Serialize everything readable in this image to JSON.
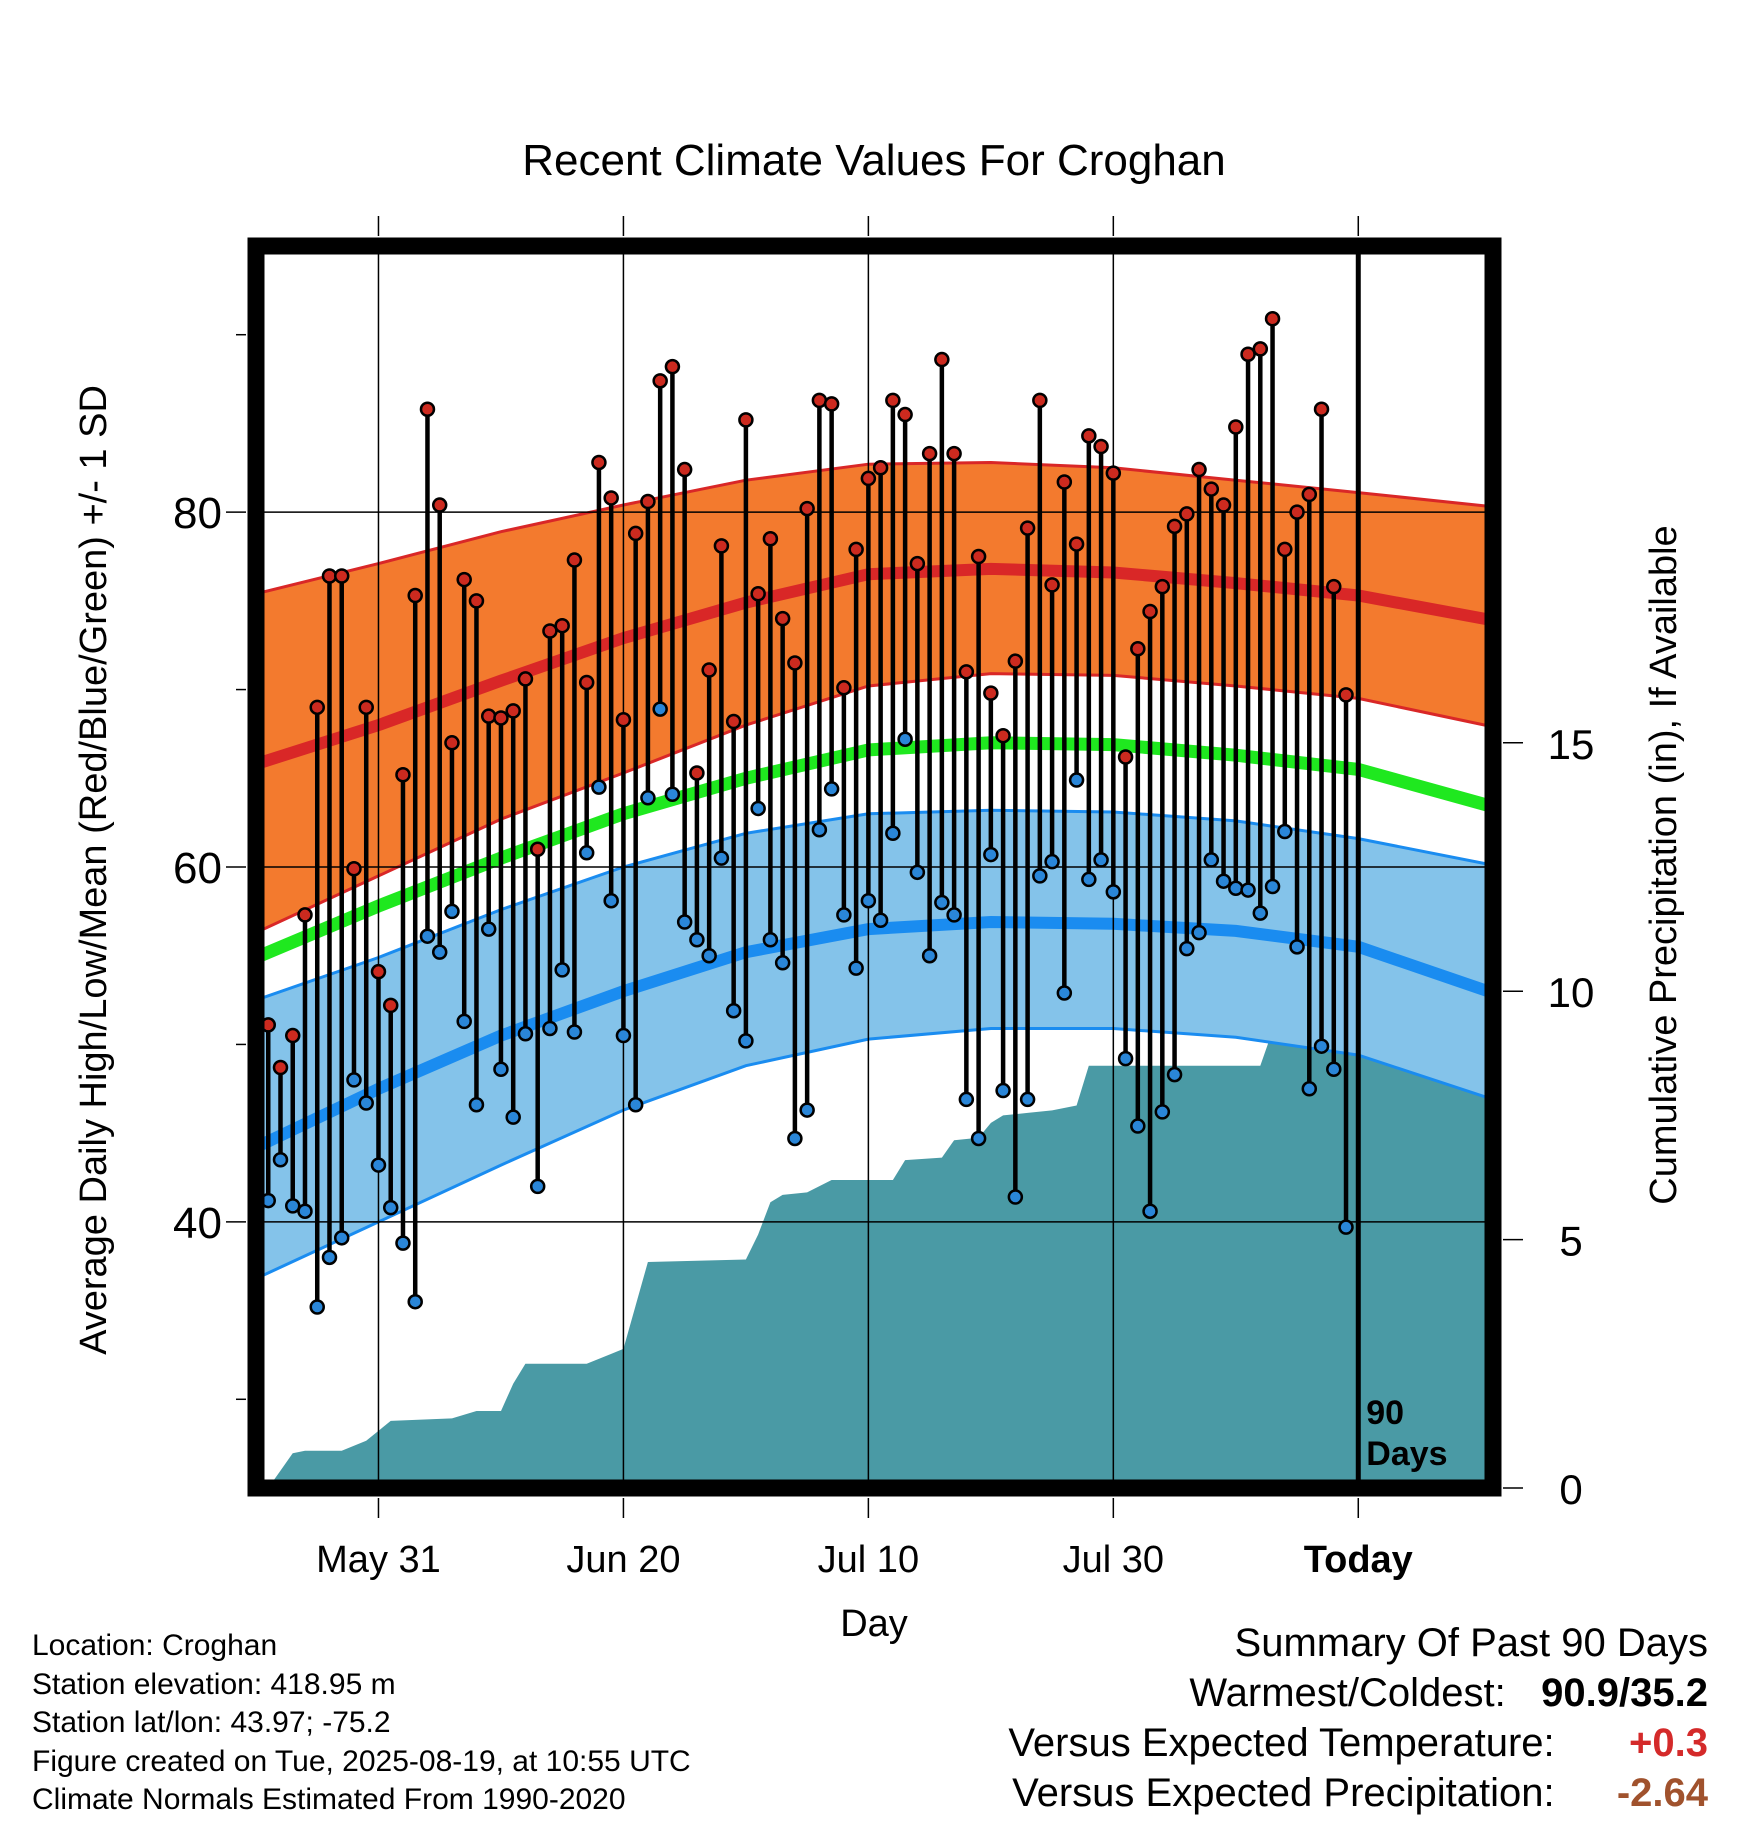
{
  "chart_data": {
    "type": "line",
    "title": "Recent Climate Values For Croghan",
    "xlabel": "Day",
    "ylabel": "Average Daily High/Low/Mean (Red/Blue/Green) +/- 1 SD",
    "y2label": "Cumulative Precipitation (in), If Available",
    "x_range": [
      "2025-05-21",
      "2025-08-30"
    ],
    "ylim": [
      25,
      95
    ],
    "y2lim": [
      0,
      25
    ],
    "x_ticks": [
      {
        "date": "2025-05-31",
        "label": "May 31"
      },
      {
        "date": "2025-06-20",
        "label": "Jun 20"
      },
      {
        "date": "2025-07-10",
        "label": "Jul 10"
      },
      {
        "date": "2025-07-30",
        "label": "Jul 30"
      },
      {
        "date": "2025-08-19",
        "label": "Today"
      }
    ],
    "y_ticks": [
      40,
      60,
      80
    ],
    "y2_ticks": [
      0,
      5,
      10,
      15
    ],
    "today_marker": {
      "date": "2025-08-19",
      "label_line1": "90",
      "label_line2": "Days"
    },
    "grid": true,
    "colors": {
      "high_band": "#f37a2e",
      "high_mean": "#d92727",
      "mean_line": "#1fe81f",
      "low_band": "#84c3ea",
      "low_mean": "#1a8cf0",
      "precip": "#4a9aa5",
      "high_dot": "#cc2a1f",
      "low_dot": "#2a86d8"
    },
    "normals": {
      "dates": [
        "2025-05-21",
        "2025-05-31",
        "2025-06-10",
        "2025-06-20",
        "2025-06-30",
        "2025-07-10",
        "2025-07-20",
        "2025-07-30",
        "2025-08-09",
        "2025-08-19",
        "2025-08-30"
      ],
      "high_mean": [
        65.8,
        68.0,
        70.5,
        72.9,
        74.9,
        76.5,
        76.8,
        76.6,
        76.0,
        75.3,
        73.9
      ],
      "high_upper": [
        75.4,
        77.1,
        78.9,
        80.4,
        81.8,
        82.7,
        82.8,
        82.5,
        81.8,
        81.1,
        80.3
      ],
      "high_lower": [
        56.3,
        59.5,
        62.7,
        65.3,
        68.0,
        70.2,
        70.9,
        70.8,
        70.2,
        69.5,
        67.9
      ],
      "mean": [
        54.9,
        57.8,
        60.5,
        63.0,
        65.0,
        66.6,
        67.0,
        66.9,
        66.3,
        65.5,
        63.4
      ],
      "low_mean": [
        44.2,
        47.5,
        50.5,
        53.0,
        55.2,
        56.5,
        56.9,
        56.8,
        56.4,
        55.5,
        52.9
      ],
      "low_upper": [
        52.5,
        54.9,
        57.6,
        60.0,
        61.9,
        63.0,
        63.2,
        63.1,
        62.6,
        61.6,
        60.1
      ],
      "low_lower": [
        36.8,
        40.0,
        43.2,
        46.3,
        48.8,
        50.3,
        50.9,
        50.9,
        50.4,
        49.4,
        46.9
      ]
    },
    "daily": {
      "start_date": "2025-05-21",
      "high": [
        55.0,
        51.1,
        48.7,
        50.5,
        57.3,
        69.0,
        76.4,
        76.4,
        59.9,
        69.0,
        54.1,
        52.2,
        65.2,
        75.3,
        85.8,
        80.4,
        67.0,
        76.2,
        75.0,
        68.5,
        68.4,
        68.8,
        70.6,
        61.0,
        73.3,
        73.6,
        77.3,
        70.4,
        82.8,
        80.8,
        68.3,
        78.8,
        80.6,
        87.4,
        88.2,
        82.4,
        65.3,
        71.1,
        78.1,
        68.2,
        85.2,
        75.4,
        78.5,
        74.0,
        71.5,
        80.2,
        86.3,
        86.1,
        70.1,
        77.9,
        81.9,
        82.5,
        86.3,
        85.5,
        77.1,
        83.3,
        88.6,
        83.3,
        71.0,
        77.5,
        69.8,
        67.4,
        71.6,
        79.1,
        86.3,
        75.9,
        81.7,
        78.2,
        84.3,
        83.7,
        82.2,
        66.2,
        72.3,
        74.4,
        75.8,
        79.2,
        79.9,
        82.4,
        81.3,
        80.4,
        84.8,
        88.9,
        89.2,
        90.9,
        77.9,
        80.0,
        81.0,
        85.8,
        75.8,
        69.7
      ],
      "low": [
        41.5,
        41.2,
        43.5,
        40.9,
        40.6,
        35.2,
        38.0,
        39.1,
        48.0,
        46.7,
        43.2,
        40.8,
        38.8,
        35.5,
        56.1,
        55.2,
        57.5,
        51.3,
        46.6,
        56.5,
        48.6,
        45.9,
        50.6,
        42.0,
        50.9,
        54.2,
        50.7,
        60.8,
        64.5,
        58.1,
        50.5,
        46.6,
        63.9,
        68.9,
        64.1,
        56.9,
        55.9,
        55.0,
        60.5,
        51.9,
        50.2,
        63.3,
        55.9,
        54.6,
        44.7,
        46.3,
        62.1,
        64.4,
        57.3,
        54.3,
        58.1,
        57.0,
        61.9,
        67.2,
        59.7,
        55.0,
        58.0,
        57.3,
        46.9,
        44.7,
        60.7,
        47.4,
        41.4,
        46.9,
        59.5,
        60.3,
        52.9,
        64.9,
        59.3,
        60.4,
        58.6,
        49.2,
        45.4,
        40.6,
        46.2,
        48.3,
        55.4,
        56.3,
        60.4,
        59.2,
        58.8,
        58.7,
        57.4,
        58.9,
        62.0,
        55.5,
        47.5,
        49.9,
        48.6,
        39.7
      ]
    },
    "precip": {
      "dates": [
        "2025-05-21",
        "2025-05-22",
        "2025-05-23",
        "2025-05-24",
        "2025-05-25",
        "2025-05-28",
        "2025-05-30",
        "2025-06-01",
        "2025-06-06",
        "2025-06-08",
        "2025-06-10",
        "2025-06-11",
        "2025-06-12",
        "2025-06-17",
        "2025-06-19",
        "2025-06-20",
        "2025-06-22",
        "2025-06-30",
        "2025-07-01",
        "2025-07-02",
        "2025-07-03",
        "2025-07-05",
        "2025-07-07",
        "2025-07-12",
        "2025-07-13",
        "2025-07-16",
        "2025-07-17",
        "2025-07-19",
        "2025-07-20",
        "2025-07-21",
        "2025-07-23",
        "2025-07-25",
        "2025-07-27",
        "2025-07-28",
        "2025-08-11",
        "2025-08-12",
        "2025-08-19",
        "2025-08-30"
      ],
      "cumulative": [
        0.0,
        0.0,
        0.35,
        0.7,
        0.75,
        0.75,
        0.95,
        1.35,
        1.4,
        1.55,
        1.55,
        2.1,
        2.5,
        2.5,
        2.7,
        2.8,
        4.55,
        4.6,
        5.1,
        5.75,
        5.9,
        5.95,
        6.2,
        6.2,
        6.6,
        6.65,
        7.0,
        7.05,
        7.35,
        7.5,
        7.55,
        7.6,
        7.7,
        8.5,
        8.5,
        9.2,
        9.2,
        9.2
      ]
    }
  },
  "footer": {
    "location": "Location: Croghan",
    "elevation": "Station elevation: 418.95 m",
    "latlon": "Station lat/lon: 43.97; -75.2",
    "created": "Figure created on Tue, 2025-08-19, at 10:55 UTC",
    "normals": "Climate Normals Estimated From 1990-2020"
  },
  "summary": {
    "heading": "Summary Of Past 90 Days",
    "warm_cold_label": "Warmest/Coldest:",
    "warm_cold_value": "90.9/35.2",
    "temp_label": "Versus Expected Temperature:",
    "temp_value": "+0.3",
    "temp_color": "#d42a2a",
    "precip_label": "Versus Expected Precipitation:",
    "precip_value": "-2.64",
    "precip_color": "#a0522d"
  }
}
